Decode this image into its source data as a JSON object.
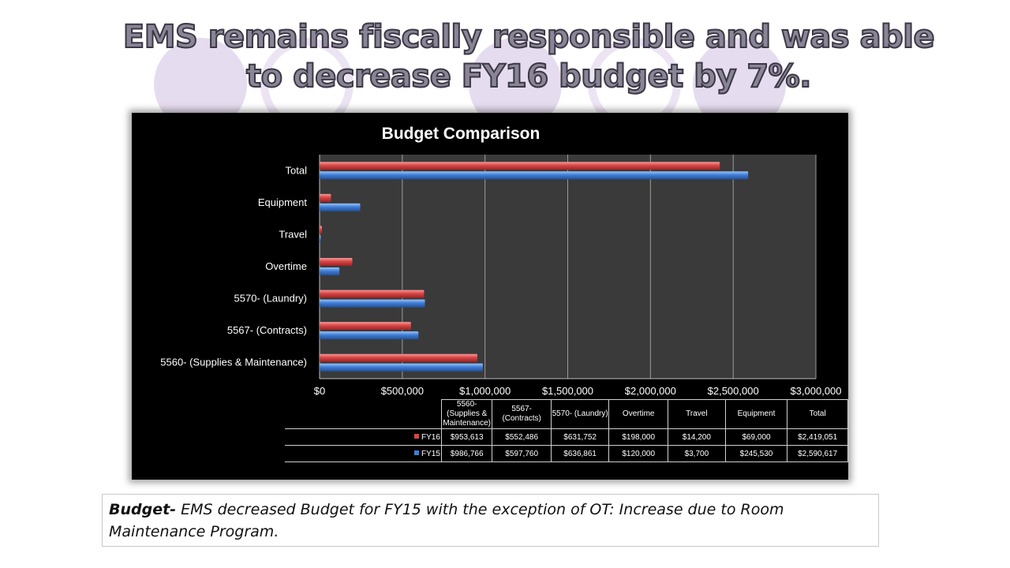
{
  "slide": {
    "title": "EMS remains fiscally responsible and was able to decrease FY16 budget by 7%.",
    "caption_lead": "Budget-",
    "caption_body": " EMS decreased Budget for FY15 with the exception of OT: Increase due to Room Maintenance Program."
  },
  "colors": {
    "fy16": "#d94545",
    "fy15": "#3f7ed6",
    "plot_bg": "#3a3a3a",
    "grid": "#9a9a9a",
    "decor": "#e6dcef"
  },
  "chart_data": {
    "type": "bar",
    "orientation": "horizontal",
    "title": "Budget Comparison",
    "categories": [
      "5560- (Supplies & Maintenance)",
      "5567- (Contracts)",
      "5570- (Laundry)",
      "Overtime",
      "Travel",
      "Equipment",
      "Total"
    ],
    "series": [
      {
        "name": "FY16",
        "values": [
          953613,
          552486,
          631752,
          198000,
          14200,
          69000,
          2419051
        ]
      },
      {
        "name": "FY15",
        "values": [
          986766,
          597760,
          636861,
          120000,
          3700,
          245530,
          2590617
        ]
      }
    ],
    "xlim": [
      0,
      3000000
    ],
    "x_ticks": [
      "$0",
      "$500,000",
      "$1,000,000",
      "$1,500,000",
      "$2,000,000",
      "$2,500,000",
      "$3,000,000"
    ],
    "grid": true,
    "data_table": {
      "headers": [
        "5560- (Supplies & Maintenance)",
        "5567- (Contracts)",
        "5570- (Laundry)",
        "Overtime",
        "Travel",
        "Equipment",
        "Total"
      ],
      "rows": [
        {
          "series": "FY16",
          "cells": [
            "$953,613",
            "$552,486",
            "$631,752",
            "$198,000",
            "$14,200",
            "$69,000",
            "$2,419,051"
          ]
        },
        {
          "series": "FY15",
          "cells": [
            "$986,766",
            "$597,760",
            "$636,861",
            "$120,000",
            "$3,700",
            "$245,530",
            "$2,590,617"
          ]
        }
      ]
    }
  }
}
